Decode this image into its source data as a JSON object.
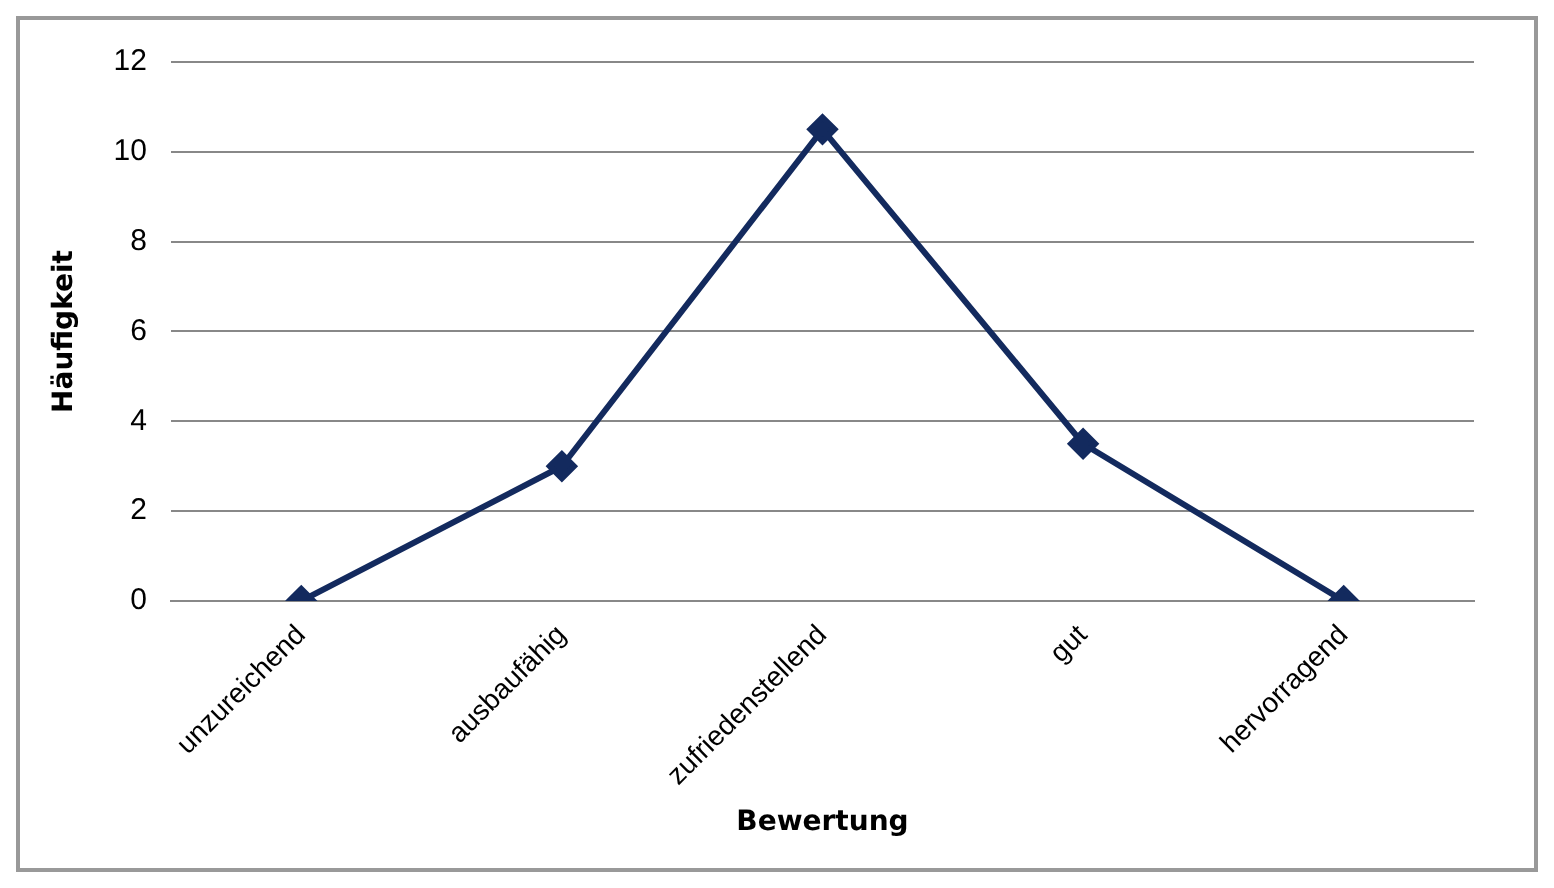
{
  "chart_data": {
    "type": "line",
    "xlabel": "Bewertung",
    "ylabel": "Häufigkeit",
    "categories": [
      "unzureichend",
      "ausbaufähig",
      "zufriedenstellend",
      "gut",
      "hervorragend"
    ],
    "series": [
      {
        "color": "#132a5e",
        "values": [
          0,
          3,
          10.5,
          3.5,
          0
        ]
      }
    ],
    "ylim": [
      0,
      12
    ],
    "yticks": [
      0,
      2,
      4,
      6,
      8,
      10,
      12
    ],
    "grid": "y",
    "legend": false,
    "marker": "diamond",
    "line_style": "solid"
  }
}
